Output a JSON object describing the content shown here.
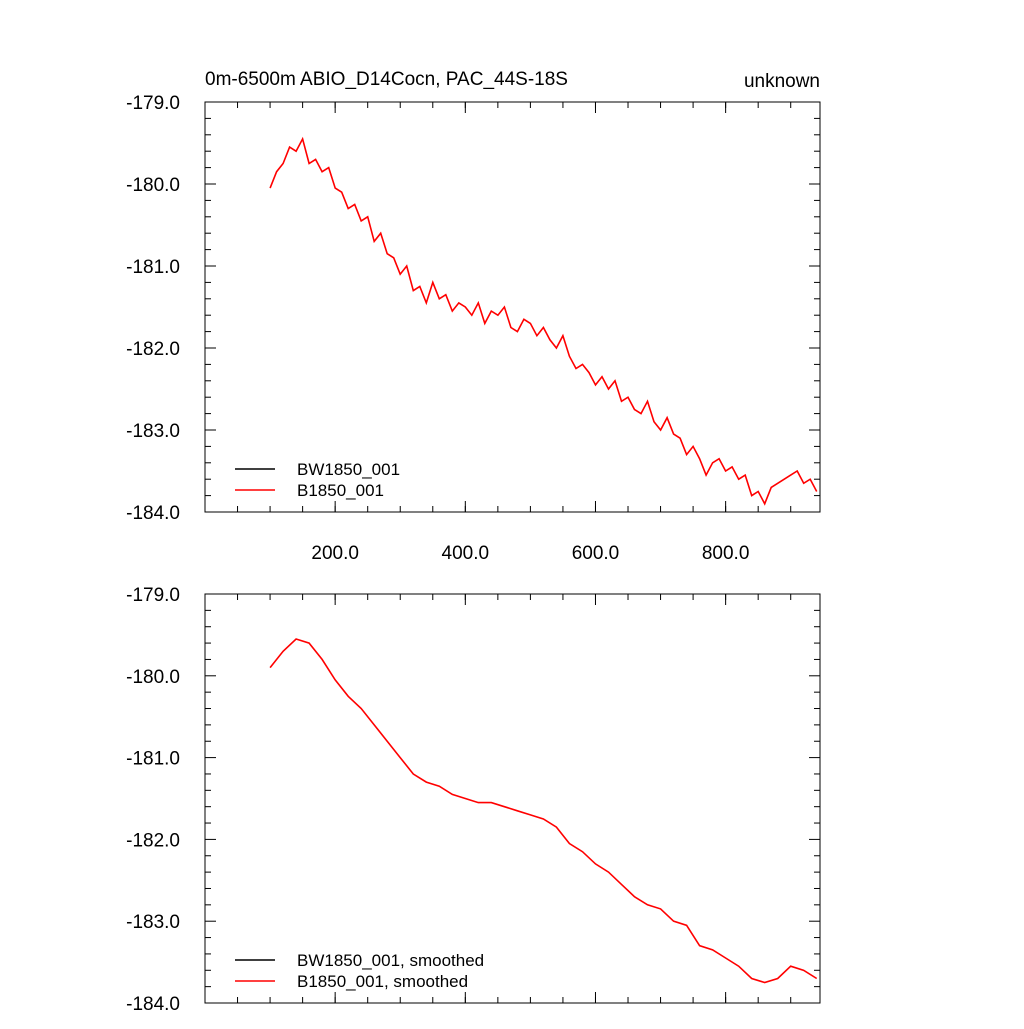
{
  "chart_data": [
    {
      "type": "line",
      "title": "0m-6500m ABIO_D14Cocn, PAC_44S-18S",
      "subtitle": "unknown",
      "xlim": [
        0,
        945
      ],
      "ylim": [
        -184,
        -179
      ],
      "xticks": [
        {
          "value": 200,
          "label": "200.0"
        },
        {
          "value": 400,
          "label": "400.0"
        },
        {
          "value": 600,
          "label": "600.0"
        },
        {
          "value": 800,
          "label": "800.0"
        }
      ],
      "yticks": [
        {
          "value": -179,
          "label": "-179.0"
        },
        {
          "value": -180,
          "label": "-180.0"
        },
        {
          "value": -181,
          "label": "-181.0"
        },
        {
          "value": -182,
          "label": "-182.0"
        },
        {
          "value": -183,
          "label": "-183.0"
        },
        {
          "value": -184,
          "label": "-184.0"
        }
      ],
      "xticklabels": true,
      "x": [
        100,
        110,
        120,
        130,
        140,
        150,
        160,
        170,
        180,
        190,
        200,
        210,
        220,
        230,
        240,
        250,
        260,
        270,
        280,
        290,
        300,
        310,
        320,
        330,
        340,
        350,
        360,
        370,
        380,
        390,
        400,
        410,
        420,
        430,
        440,
        450,
        460,
        470,
        480,
        490,
        500,
        510,
        520,
        530,
        540,
        550,
        560,
        570,
        580,
        590,
        600,
        610,
        620,
        630,
        640,
        650,
        660,
        670,
        680,
        690,
        700,
        710,
        720,
        730,
        740,
        750,
        760,
        770,
        780,
        790,
        800,
        810,
        820,
        830,
        840,
        850,
        860,
        870,
        880,
        890,
        900,
        910,
        920,
        930,
        940
      ],
      "series": [
        {
          "name": "BW1850_001",
          "color": "#000000",
          "values": [
            null,
            null,
            null,
            null,
            null,
            null,
            null,
            null,
            null,
            null,
            null,
            null,
            null,
            null,
            null,
            null,
            null,
            null,
            null,
            null,
            null,
            null,
            null,
            null,
            null,
            null,
            null,
            null,
            null,
            null,
            null,
            null,
            null,
            null,
            null,
            null,
            null,
            null,
            null,
            null,
            null,
            null,
            null,
            null,
            null,
            null,
            null,
            null,
            null,
            null,
            null,
            null,
            null,
            null,
            null,
            null,
            null,
            null,
            null,
            null,
            null,
            null,
            null,
            null,
            null,
            null,
            null,
            null,
            null,
            null,
            null,
            null,
            null,
            null,
            null,
            null,
            null,
            null,
            null,
            null,
            null,
            null,
            null,
            null,
            null
          ]
        },
        {
          "name": "B1850_001",
          "color": "#ff0000",
          "values": [
            -180.05,
            -179.85,
            -179.75,
            -179.55,
            -179.6,
            -179.45,
            -179.75,
            -179.7,
            -179.85,
            -179.8,
            -180.05,
            -180.1,
            -180.3,
            -180.25,
            -180.45,
            -180.4,
            -180.7,
            -180.6,
            -180.85,
            -180.9,
            -181.1,
            -181.0,
            -181.3,
            -181.25,
            -181.45,
            -181.2,
            -181.4,
            -181.35,
            -181.55,
            -181.45,
            -181.5,
            -181.6,
            -181.45,
            -181.7,
            -181.55,
            -181.6,
            -181.5,
            -181.75,
            -181.8,
            -181.65,
            -181.7,
            -181.85,
            -181.75,
            -181.9,
            -182.0,
            -181.85,
            -182.1,
            -182.25,
            -182.2,
            -182.3,
            -182.45,
            -182.35,
            -182.5,
            -182.4,
            -182.65,
            -182.6,
            -182.75,
            -182.8,
            -182.65,
            -182.9,
            -183.0,
            -182.85,
            -183.05,
            -183.1,
            -183.3,
            -183.2,
            -183.35,
            -183.55,
            -183.4,
            -183.35,
            -183.5,
            -183.45,
            -183.6,
            -183.55,
            -183.8,
            -183.75,
            -183.9,
            -183.7,
            -183.65,
            -183.6,
            -183.55,
            -183.5,
            -183.65,
            -183.6,
            -183.75
          ]
        }
      ]
    },
    {
      "type": "line",
      "xlim": [
        0,
        945
      ],
      "ylim": [
        -184,
        -179
      ],
      "xticks": [
        200,
        400,
        600,
        800
      ],
      "yticks": [
        {
          "value": -179,
          "label": "-179.0"
        },
        {
          "value": -180,
          "label": "-180.0"
        },
        {
          "value": -181,
          "label": "-181.0"
        },
        {
          "value": -182,
          "label": "-182.0"
        },
        {
          "value": -183,
          "label": "-183.0"
        },
        {
          "value": -184,
          "label": "-184.0"
        }
      ],
      "xticklabels": false,
      "x": [
        100,
        120,
        140,
        160,
        180,
        200,
        220,
        240,
        260,
        280,
        300,
        320,
        340,
        360,
        380,
        400,
        420,
        440,
        460,
        480,
        500,
        520,
        540,
        560,
        580,
        600,
        620,
        640,
        660,
        680,
        700,
        720,
        740,
        760,
        780,
        800,
        820,
        840,
        860,
        880,
        900,
        920,
        940
      ],
      "series": [
        {
          "name": "BW1850_001, smoothed",
          "color": "#000000",
          "values": [
            null,
            null,
            null,
            null,
            null,
            null,
            null,
            null,
            null,
            null,
            null,
            null,
            null,
            null,
            null,
            null,
            null,
            null,
            null,
            null,
            null,
            null,
            null,
            null,
            null,
            null,
            null,
            null,
            null,
            null,
            null,
            null,
            null,
            null,
            null,
            null,
            null,
            null,
            null,
            null,
            null,
            null,
            null
          ]
        },
        {
          "name": "B1850_001, smoothed",
          "color": "#ff0000",
          "values": [
            -179.9,
            -179.7,
            -179.55,
            -179.6,
            -179.8,
            -180.05,
            -180.25,
            -180.4,
            -180.6,
            -180.8,
            -181.0,
            -181.2,
            -181.3,
            -181.35,
            -181.45,
            -181.5,
            -181.55,
            -181.55,
            -181.6,
            -181.65,
            -181.7,
            -181.75,
            -181.85,
            -182.05,
            -182.15,
            -182.3,
            -182.4,
            -182.55,
            -182.7,
            -182.8,
            -182.85,
            -183.0,
            -183.05,
            -183.3,
            -183.35,
            -183.45,
            -183.55,
            -183.7,
            -183.75,
            -183.7,
            -183.55,
            -183.6,
            -183.7
          ]
        }
      ]
    }
  ]
}
